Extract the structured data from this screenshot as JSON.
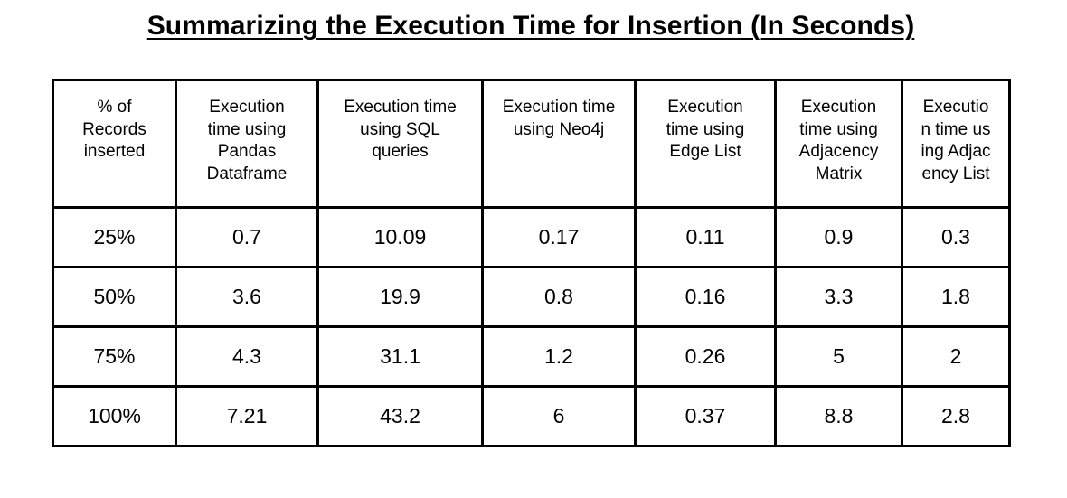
{
  "title": "Summarizing the Execution Time for Insertion (In Seconds)",
  "table": {
    "headers": [
      "% of Records inserted",
      "Execution time using Pandas Dataframe",
      "Execution time using SQL queries",
      "Execution time using Neo4j",
      "Execution time using Edge List",
      "Execution time using Adjacency Matrix",
      "Execution time using Adjacency List"
    ],
    "rows": [
      [
        "25%",
        "0.7",
        "10.09",
        "0.17",
        "0.11",
        "0.9",
        "0.3"
      ],
      [
        "50%",
        "3.6",
        "19.9",
        "0.8",
        "0.16",
        "3.3",
        "1.8"
      ],
      [
        "75%",
        "4.3",
        "31.1",
        "1.2",
        "0.26",
        "5",
        "2"
      ],
      [
        "100%",
        "7.21",
        "43.2",
        "6",
        "0.37",
        "8.8",
        "2.8"
      ]
    ]
  }
}
